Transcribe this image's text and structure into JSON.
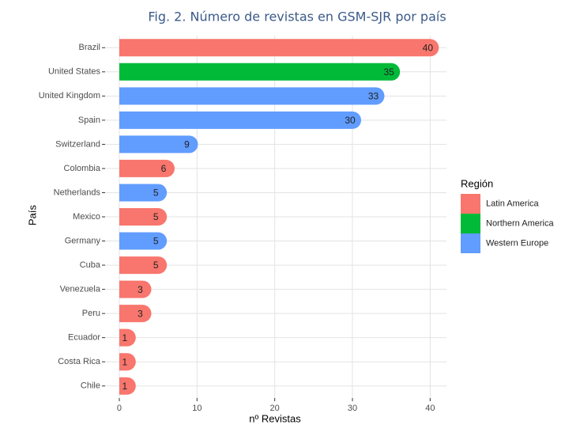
{
  "chart_data": {
    "type": "bar",
    "orientation": "horizontal",
    "title": "Fig.  2. Número de revistas en GSM-SJR por país",
    "x_label": "nº Revistas",
    "y_label": "País",
    "legend_title": "Región",
    "legend_position": "right",
    "categories": [
      "Brazil",
      "United States",
      "United Kingdom",
      "Spain",
      "Switzerland",
      "Colombia",
      "Netherlands",
      "Mexico",
      "Germany",
      "Cuba",
      "Venezuela",
      "Peru",
      "Ecuador",
      "Costa Rica",
      "Chile"
    ],
    "series": [
      {
        "name": "Latin America",
        "color": "#F8766D",
        "values": [
          40,
          null,
          null,
          null,
          null,
          6,
          null,
          5,
          null,
          5,
          3,
          3,
          1,
          1,
          1
        ]
      },
      {
        "name": "Northern America",
        "color": "#00BA38",
        "values": [
          null,
          35,
          null,
          null,
          null,
          null,
          null,
          null,
          null,
          null,
          null,
          null,
          null,
          null,
          null
        ]
      },
      {
        "name": "Western Europe",
        "color": "#619CFF",
        "values": [
          null,
          null,
          33,
          30,
          9,
          null,
          5,
          null,
          5,
          null,
          null,
          null,
          null,
          null,
          null
        ]
      }
    ],
    "xlim": [
      -1.83,
      42.1
    ],
    "xticks": [
      0,
      10,
      20,
      30,
      40
    ],
    "grid": true
  }
}
